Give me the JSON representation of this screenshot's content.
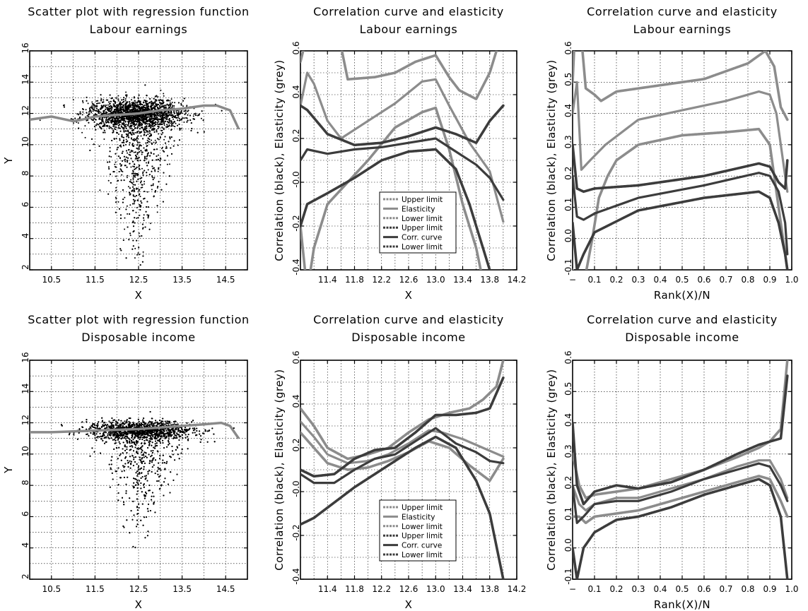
{
  "chart_data": [
    {
      "type": "scatter",
      "title": "Scatter plot with regression function",
      "subtitle": "Labour earnings",
      "xlabel": "X",
      "ylabel": "Y",
      "xlim": [
        10,
        15
      ],
      "ylim": [
        2,
        16
      ],
      "xticks": [
        10.5,
        11.5,
        12.5,
        13.5,
        14.5
      ],
      "yticks": [
        2,
        4,
        6,
        8,
        10,
        12,
        14,
        16
      ],
      "grid": true,
      "point_cloud": {
        "x_center": 12.45,
        "y_center": 12.0,
        "x_spread": 0.55,
        "y_spread": 0.55,
        "lower_tail_to": 3.5
      },
      "regression": {
        "color": "#8a8a8a",
        "x": [
          10.0,
          10.5,
          11.0,
          11.2,
          11.5,
          12.0,
          12.5,
          13.0,
          13.5,
          14.0,
          14.3,
          14.6,
          14.8
        ],
        "y": [
          11.6,
          11.8,
          11.5,
          11.6,
          11.8,
          11.9,
          12.0,
          12.2,
          12.3,
          12.5,
          12.5,
          12.2,
          11.0
        ]
      }
    },
    {
      "type": "line",
      "title": "Correlation curve and elasticity",
      "subtitle": "Labour earnings",
      "xlabel": "X",
      "ylabel": "Correlation (black), Elasticity (grey)",
      "xlim": [
        11.0,
        14.2
      ],
      "ylim": [
        -0.4,
        0.6
      ],
      "xticks": [
        "11.4",
        "11.8",
        "12.2",
        "12.6",
        "13.0",
        "13.4",
        "13.8",
        "14.2"
      ],
      "yticks": [
        "-0.4",
        "-0.2",
        "-0.0",
        "0.2",
        "0.4",
        "0.6"
      ],
      "grid": true,
      "legend": "bottom-center",
      "series": [
        {
          "name": "Upper limit",
          "color": "#8c8c8c",
          "x": [
            11.0,
            11.2,
            11.6,
            11.7,
            12.1,
            12.4,
            12.7,
            13.0,
            13.2,
            13.35,
            13.6,
            13.8,
            13.9
          ],
          "y": [
            0.55,
            0.8,
            0.62,
            0.47,
            0.48,
            0.5,
            0.55,
            0.58,
            0.48,
            0.42,
            0.38,
            0.5,
            0.6
          ]
        },
        {
          "name": "Elasticity",
          "color": "#8c8c8c",
          "x": [
            11.0,
            11.1,
            11.2,
            11.4,
            11.6,
            12.0,
            12.4,
            12.8,
            13.0,
            13.2,
            13.5,
            13.8,
            14.0
          ],
          "y": [
            0.35,
            0.5,
            0.45,
            0.28,
            0.2,
            0.28,
            0.36,
            0.46,
            0.47,
            0.35,
            0.18,
            0.05,
            -0.18
          ]
        },
        {
          "name": "Lower limit",
          "color": "#8c8c8c",
          "x": [
            11.0,
            11.1,
            11.2,
            11.4,
            11.7,
            12.0,
            12.4,
            12.8,
            13.0,
            13.2,
            13.4,
            13.6,
            13.7
          ],
          "y": [
            -0.2,
            -0.5,
            -0.3,
            -0.1,
            0.0,
            0.1,
            0.25,
            0.32,
            0.34,
            0.15,
            -0.1,
            -0.3,
            -0.45
          ]
        },
        {
          "name": "Upper limit",
          "color": "#3c3c3c",
          "x": [
            11.0,
            11.1,
            11.4,
            11.8,
            12.2,
            12.6,
            13.0,
            13.3,
            13.6,
            13.8,
            14.0
          ],
          "y": [
            0.35,
            0.33,
            0.22,
            0.17,
            0.18,
            0.21,
            0.25,
            0.22,
            0.18,
            0.28,
            0.35
          ]
        },
        {
          "name": "Corr. curve",
          "color": "#3c3c3c",
          "x": [
            11.0,
            11.1,
            11.4,
            11.8,
            12.2,
            12.6,
            13.0,
            13.3,
            13.6,
            13.8,
            14.0
          ],
          "y": [
            0.1,
            0.15,
            0.13,
            0.15,
            0.16,
            0.18,
            0.2,
            0.14,
            0.08,
            0.02,
            -0.08
          ]
        },
        {
          "name": "Lower limit",
          "color": "#3c3c3c",
          "x": [
            11.0,
            11.1,
            11.4,
            11.8,
            12.2,
            12.6,
            13.0,
            13.3,
            13.5,
            13.7,
            13.85
          ],
          "y": [
            -0.2,
            -0.1,
            -0.05,
            0.02,
            0.1,
            0.14,
            0.15,
            0.06,
            -0.1,
            -0.3,
            -0.45
          ]
        }
      ]
    },
    {
      "type": "line",
      "title": "Correlation curve and elasticity",
      "subtitle": "Labour earnings",
      "xlabel": "Rank(X)/N",
      "ylabel": "Correlation (black), Elasticity (grey)",
      "xlim": [
        0,
        1
      ],
      "ylim": [
        -0.1,
        0.6
      ],
      "xticks": [
        "−",
        "0.1",
        "0.2",
        "0.3",
        "0.4",
        "0.5",
        "0.6",
        "0.7",
        "0.8",
        "0.9",
        "1.0"
      ],
      "yticks": [
        "-0.1",
        "0.0",
        "0.1",
        "0.2",
        "0.3",
        "0.4",
        "0.5",
        "0.6"
      ],
      "grid": true,
      "series": [
        {
          "name": "Upper limit",
          "color": "#8c8c8c",
          "x": [
            0.0,
            0.02,
            0.06,
            0.1,
            0.13,
            0.2,
            0.4,
            0.6,
            0.8,
            0.88,
            0.92,
            0.95,
            0.98
          ],
          "y": [
            0.5,
            0.8,
            0.48,
            0.46,
            0.44,
            0.47,
            0.49,
            0.51,
            0.56,
            0.6,
            0.55,
            0.42,
            0.38
          ]
        },
        {
          "name": "Elasticity",
          "color": "#8c8c8c",
          "x": [
            0.0,
            0.02,
            0.04,
            0.08,
            0.15,
            0.3,
            0.5,
            0.7,
            0.85,
            0.9,
            0.93,
            0.96,
            0.98
          ],
          "y": [
            0.4,
            0.5,
            0.22,
            0.25,
            0.3,
            0.38,
            0.41,
            0.44,
            0.47,
            0.46,
            0.4,
            0.25,
            0.15
          ]
        },
        {
          "name": "Lower limit",
          "color": "#8c8c8c",
          "x": [
            0.0,
            0.05,
            0.09,
            0.12,
            0.16,
            0.2,
            0.3,
            0.5,
            0.7,
            0.85,
            0.9,
            0.95,
            0.98
          ],
          "y": [
            -0.1,
            -0.15,
            0.0,
            0.13,
            0.2,
            0.25,
            0.3,
            0.33,
            0.34,
            0.35,
            0.3,
            0.05,
            -0.1
          ]
        },
        {
          "name": "Upper limit",
          "color": "#3c3c3c",
          "x": [
            0.0,
            0.02,
            0.05,
            0.1,
            0.3,
            0.6,
            0.85,
            0.9,
            0.94,
            0.97,
            0.98
          ],
          "y": [
            0.3,
            0.16,
            0.15,
            0.16,
            0.17,
            0.2,
            0.24,
            0.23,
            0.18,
            0.16,
            0.25
          ]
        },
        {
          "name": "Corr. curve",
          "color": "#3c3c3c",
          "x": [
            0.0,
            0.02,
            0.05,
            0.1,
            0.3,
            0.6,
            0.85,
            0.9,
            0.94,
            0.97,
            0.98
          ],
          "y": [
            0.2,
            0.07,
            0.06,
            0.08,
            0.13,
            0.17,
            0.21,
            0.2,
            0.15,
            0.05,
            -0.05
          ]
        },
        {
          "name": "Lower limit",
          "color": "#3c3c3c",
          "x": [
            0.0,
            0.02,
            0.05,
            0.1,
            0.3,
            0.6,
            0.85,
            0.9,
            0.94,
            0.97,
            0.98
          ],
          "y": [
            0.05,
            -0.1,
            -0.05,
            0.02,
            0.09,
            0.13,
            0.15,
            0.13,
            0.05,
            -0.05,
            -0.1
          ]
        }
      ]
    },
    {
      "type": "scatter",
      "title": "Scatter plot with regression function",
      "subtitle": "Disposable income",
      "xlabel": "X",
      "ylabel": "Y",
      "xlim": [
        10,
        15
      ],
      "ylim": [
        2,
        16
      ],
      "xticks": [
        10.5,
        11.5,
        12.5,
        13.5,
        14.5
      ],
      "yticks": [
        2,
        4,
        6,
        8,
        10,
        12,
        14,
        16
      ],
      "grid": true,
      "point_cloud": {
        "x_center": 12.55,
        "y_center": 11.55,
        "x_spread": 0.6,
        "y_spread": 0.35,
        "lower_tail_to": 5.5
      },
      "regression": {
        "color": "#8a8a8a",
        "x": [
          10.0,
          10.5,
          11.0,
          11.5,
          12.0,
          12.5,
          13.0,
          13.5,
          14.0,
          14.4,
          14.6,
          14.8
        ],
        "y": [
          11.4,
          11.4,
          11.45,
          11.5,
          11.55,
          11.6,
          11.7,
          11.8,
          11.9,
          12.0,
          11.8,
          11.0
        ]
      }
    },
    {
      "type": "line",
      "title": "Correlation curve and elasticity",
      "subtitle": "Disposable income",
      "xlabel": "X",
      "ylabel": "Correlation (black), Elasticity (grey)",
      "xlim": [
        11.0,
        14.2
      ],
      "ylim": [
        -0.4,
        0.6
      ],
      "xticks": [
        "11.4",
        "11.8",
        "12.2",
        "12.6",
        "13.0",
        "13.4",
        "13.8",
        "14.2"
      ],
      "yticks": [
        "-0.4",
        "-0.2",
        "-0.0",
        "0.2",
        "0.4",
        "0.6"
      ],
      "grid": true,
      "legend": "bottom-center",
      "series": [
        {
          "name": "Upper limit",
          "color": "#8c8c8c",
          "x": [
            11.0,
            11.2,
            11.4,
            11.7,
            12.0,
            12.3,
            12.6,
            12.9,
            13.2,
            13.5,
            13.7,
            13.9,
            14.0
          ],
          "y": [
            0.38,
            0.3,
            0.2,
            0.15,
            0.17,
            0.2,
            0.27,
            0.33,
            0.36,
            0.38,
            0.42,
            0.48,
            0.6
          ]
        },
        {
          "name": "Elasticity",
          "color": "#8c8c8c",
          "x": [
            11.0,
            11.2,
            11.4,
            11.7,
            12.0,
            12.3,
            12.6,
            12.9,
            13.1,
            13.4,
            13.7,
            14.0
          ],
          "y": [
            0.32,
            0.25,
            0.17,
            0.13,
            0.14,
            0.17,
            0.22,
            0.28,
            0.27,
            0.24,
            0.2,
            0.16
          ]
        },
        {
          "name": "Lower limit",
          "color": "#8c8c8c",
          "x": [
            11.0,
            11.2,
            11.4,
            11.7,
            12.0,
            12.3,
            12.6,
            12.9,
            13.2,
            13.5,
            13.8,
            14.0
          ],
          "y": [
            0.27,
            0.2,
            0.13,
            0.1,
            0.11,
            0.14,
            0.18,
            0.23,
            0.2,
            0.12,
            0.05,
            0.15
          ]
        },
        {
          "name": "Upper limit",
          "color": "#3c3c3c",
          "x": [
            11.0,
            11.2,
            11.5,
            11.8,
            12.1,
            12.4,
            12.7,
            13.0,
            13.3,
            13.6,
            13.8,
            14.0
          ],
          "y": [
            0.1,
            0.07,
            0.08,
            0.15,
            0.19,
            0.2,
            0.27,
            0.35,
            0.35,
            0.36,
            0.38,
            0.52
          ]
        },
        {
          "name": "Corr. curve",
          "color": "#3c3c3c",
          "x": [
            11.0,
            11.2,
            11.5,
            11.8,
            12.1,
            12.4,
            12.7,
            13.0,
            13.3,
            13.6,
            13.8,
            14.0
          ],
          "y": [
            0.08,
            0.04,
            0.04,
            0.1,
            0.15,
            0.17,
            0.23,
            0.29,
            0.22,
            0.18,
            0.14,
            0.13
          ]
        },
        {
          "name": "Lower limit",
          "color": "#3c3c3c",
          "x": [
            11.0,
            11.2,
            11.5,
            11.8,
            12.1,
            12.4,
            12.7,
            13.0,
            13.3,
            13.6,
            13.8,
            14.0
          ],
          "y": [
            -0.15,
            -0.12,
            -0.05,
            0.02,
            0.08,
            0.14,
            0.2,
            0.25,
            0.2,
            0.05,
            -0.1,
            -0.4
          ]
        }
      ]
    },
    {
      "type": "line",
      "title": "Correlation curve and elasticity",
      "subtitle": "Disposable income",
      "xlabel": "Rank(X)/N",
      "ylabel": "Correlation (black), Elasticity (grey)",
      "xlim": [
        0,
        1
      ],
      "ylim": [
        -0.1,
        0.6
      ],
      "xticks": [
        "−",
        "0.1",
        "0.2",
        "0.3",
        "0.4",
        "0.5",
        "0.6",
        "0.7",
        "0.8",
        "0.9",
        "1.0"
      ],
      "yticks": [
        "-0.1",
        "0.0",
        "0.1",
        "0.2",
        "0.3",
        "0.4",
        "0.5",
        "0.6"
      ],
      "grid": true,
      "series": [
        {
          "name": "Upper limit",
          "color": "#8c8c8c",
          "x": [
            0.0,
            0.03,
            0.06,
            0.1,
            0.2,
            0.3,
            0.45,
            0.6,
            0.75,
            0.85,
            0.9,
            0.95,
            0.98
          ],
          "y": [
            0.3,
            0.2,
            0.16,
            0.17,
            0.18,
            0.19,
            0.22,
            0.25,
            0.29,
            0.32,
            0.34,
            0.38,
            0.6
          ]
        },
        {
          "name": "Elasticity",
          "color": "#8c8c8c",
          "x": [
            0.0,
            0.03,
            0.06,
            0.1,
            0.2,
            0.3,
            0.45,
            0.6,
            0.75,
            0.85,
            0.9,
            0.95,
            0.98
          ],
          "y": [
            0.2,
            0.14,
            0.12,
            0.14,
            0.16,
            0.16,
            0.19,
            0.22,
            0.26,
            0.28,
            0.28,
            0.22,
            0.16
          ]
        },
        {
          "name": "Lower limit",
          "color": "#8c8c8c",
          "x": [
            0.0,
            0.03,
            0.06,
            0.1,
            0.2,
            0.3,
            0.45,
            0.6,
            0.75,
            0.85,
            0.9,
            0.95,
            0.98
          ],
          "y": [
            0.1,
            0.1,
            0.08,
            0.1,
            0.11,
            0.12,
            0.15,
            0.18,
            0.21,
            0.23,
            0.22,
            0.15,
            0.1
          ]
        },
        {
          "name": "Upper limit",
          "color": "#3c3c3c",
          "x": [
            0.0,
            0.02,
            0.05,
            0.1,
            0.2,
            0.3,
            0.45,
            0.6,
            0.75,
            0.85,
            0.9,
            0.95,
            0.98
          ],
          "y": [
            0.4,
            0.2,
            0.14,
            0.18,
            0.2,
            0.19,
            0.21,
            0.25,
            0.3,
            0.33,
            0.34,
            0.35,
            0.55
          ]
        },
        {
          "name": "Corr. curve",
          "color": "#3c3c3c",
          "x": [
            0.0,
            0.02,
            0.05,
            0.1,
            0.2,
            0.3,
            0.45,
            0.6,
            0.75,
            0.85,
            0.9,
            0.95,
            0.98
          ],
          "y": [
            0.2,
            0.08,
            0.1,
            0.14,
            0.15,
            0.15,
            0.18,
            0.22,
            0.25,
            0.27,
            0.26,
            0.2,
            0.15
          ]
        },
        {
          "name": "Lower limit",
          "color": "#3c3c3c",
          "x": [
            0.0,
            0.02,
            0.05,
            0.1,
            0.2,
            0.3,
            0.45,
            0.6,
            0.75,
            0.85,
            0.9,
            0.95,
            0.98
          ],
          "y": [
            0.0,
            -0.1,
            0.0,
            0.05,
            0.09,
            0.1,
            0.13,
            0.17,
            0.2,
            0.22,
            0.2,
            0.1,
            -0.1
          ]
        }
      ]
    }
  ]
}
